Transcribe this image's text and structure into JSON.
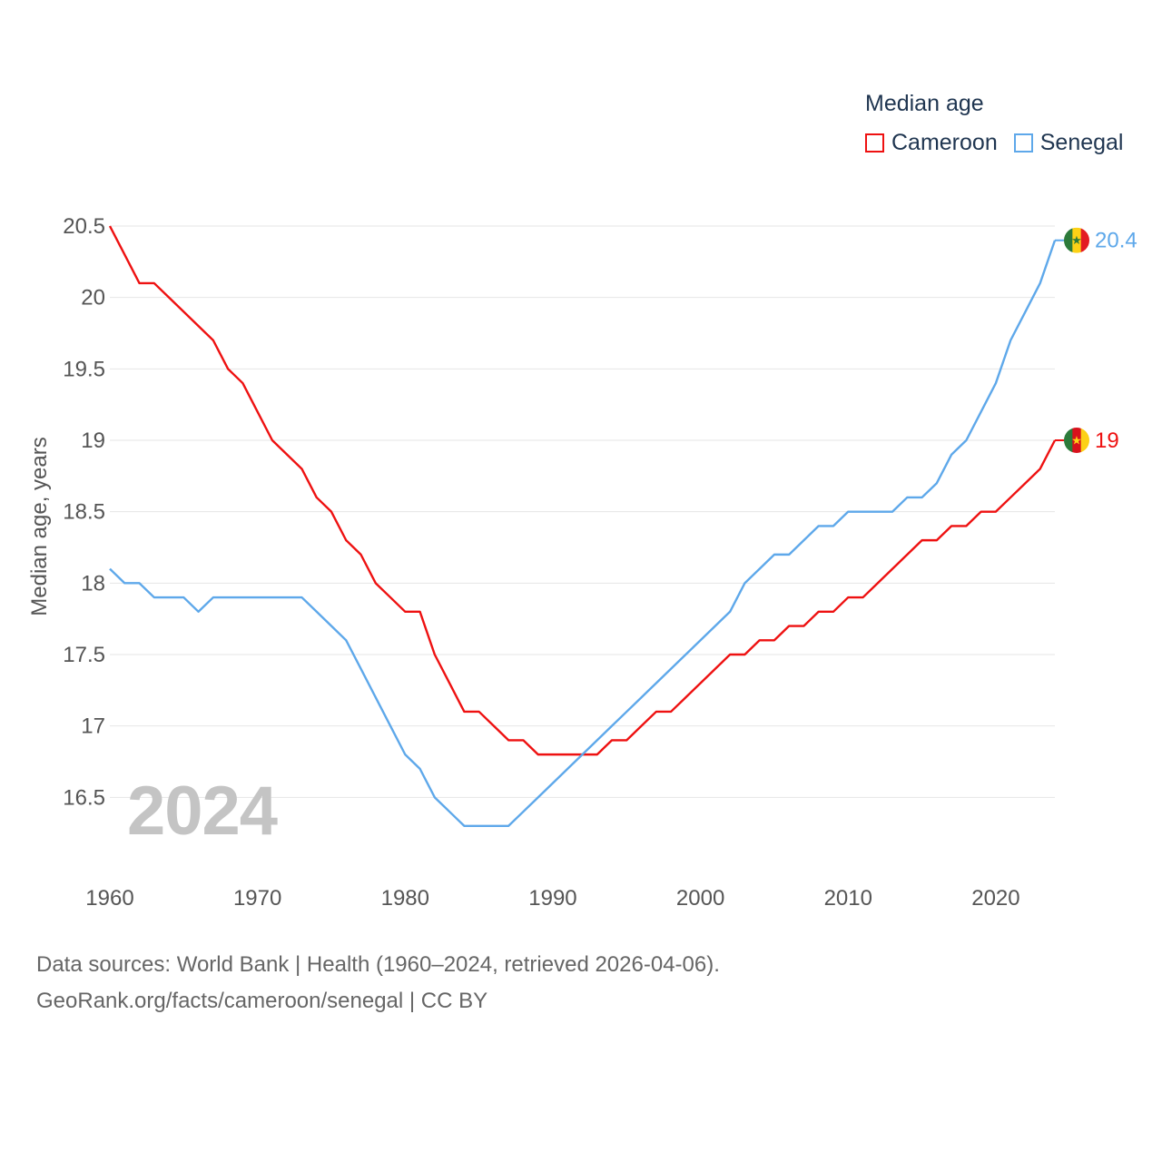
{
  "legend": {
    "title": "Median age",
    "items": [
      {
        "name": "Cameroon",
        "color": "#ee1111"
      },
      {
        "name": "Senegal",
        "color": "#5ea8ea"
      }
    ]
  },
  "year_stamp": "2024",
  "sources": {
    "line1": "Data sources: World Bank | Health (1960–2024, retrieved 2026-04-06).",
    "line2": "GeoRank.org/facts/cameroon/senegal | CC BY"
  },
  "chart_data": {
    "type": "line",
    "title": "Median age",
    "xlabel": "",
    "ylabel": "Median age, years",
    "xlim": [
      1960,
      2024
    ],
    "ylim": [
      16,
      20.5
    ],
    "x_ticks": [
      1960,
      1970,
      1980,
      1990,
      2000,
      2010,
      2020
    ],
    "y_ticks": [
      16.5,
      17,
      17.5,
      18,
      18.5,
      19,
      19.5,
      20,
      20.5
    ],
    "grid": true,
    "x": [
      1960,
      1961,
      1962,
      1963,
      1964,
      1965,
      1966,
      1967,
      1968,
      1969,
      1970,
      1971,
      1972,
      1973,
      1974,
      1975,
      1976,
      1977,
      1978,
      1979,
      1980,
      1981,
      1982,
      1983,
      1984,
      1985,
      1986,
      1987,
      1988,
      1989,
      1990,
      1991,
      1992,
      1993,
      1994,
      1995,
      1996,
      1997,
      1998,
      1999,
      2000,
      2001,
      2002,
      2003,
      2004,
      2005,
      2006,
      2007,
      2008,
      2009,
      2010,
      2011,
      2012,
      2013,
      2014,
      2015,
      2016,
      2017,
      2018,
      2019,
      2020,
      2021,
      2022,
      2023,
      2024
    ],
    "series": [
      {
        "name": "Cameroon",
        "color": "#ee1111",
        "end_label": "19",
        "values": [
          20.5,
          20.3,
          20.1,
          20.1,
          20.0,
          19.9,
          19.8,
          19.7,
          19.5,
          19.4,
          19.2,
          19.0,
          18.9,
          18.8,
          18.6,
          18.5,
          18.3,
          18.2,
          18.0,
          17.9,
          17.8,
          17.8,
          17.5,
          17.3,
          17.1,
          17.1,
          17.0,
          16.9,
          16.9,
          16.8,
          16.8,
          16.8,
          16.8,
          16.8,
          16.9,
          16.9,
          17.0,
          17.1,
          17.1,
          17.2,
          17.3,
          17.4,
          17.5,
          17.5,
          17.6,
          17.6,
          17.7,
          17.7,
          17.8,
          17.8,
          17.9,
          17.9,
          18.0,
          18.1,
          18.2,
          18.3,
          18.3,
          18.4,
          18.4,
          18.5,
          18.5,
          18.6,
          18.7,
          18.8,
          19.0
        ]
      },
      {
        "name": "Senegal",
        "color": "#5ea8ea",
        "end_label": "20.4",
        "values": [
          18.1,
          18.0,
          18.0,
          17.9,
          17.9,
          17.9,
          17.8,
          17.9,
          17.9,
          17.9,
          17.9,
          17.9,
          17.9,
          17.9,
          17.8,
          17.7,
          17.6,
          17.4,
          17.2,
          17.0,
          16.8,
          16.7,
          16.5,
          16.4,
          16.3,
          16.3,
          16.3,
          16.3,
          16.4,
          16.5,
          16.6,
          16.7,
          16.8,
          16.9,
          17.0,
          17.1,
          17.2,
          17.3,
          17.4,
          17.5,
          17.6,
          17.7,
          17.8,
          18.0,
          18.1,
          18.2,
          18.2,
          18.3,
          18.4,
          18.4,
          18.5,
          18.5,
          18.5,
          18.5,
          18.6,
          18.6,
          18.7,
          18.9,
          19.0,
          19.2,
          19.4,
          19.7,
          19.9,
          20.1,
          20.4
        ]
      }
    ]
  }
}
